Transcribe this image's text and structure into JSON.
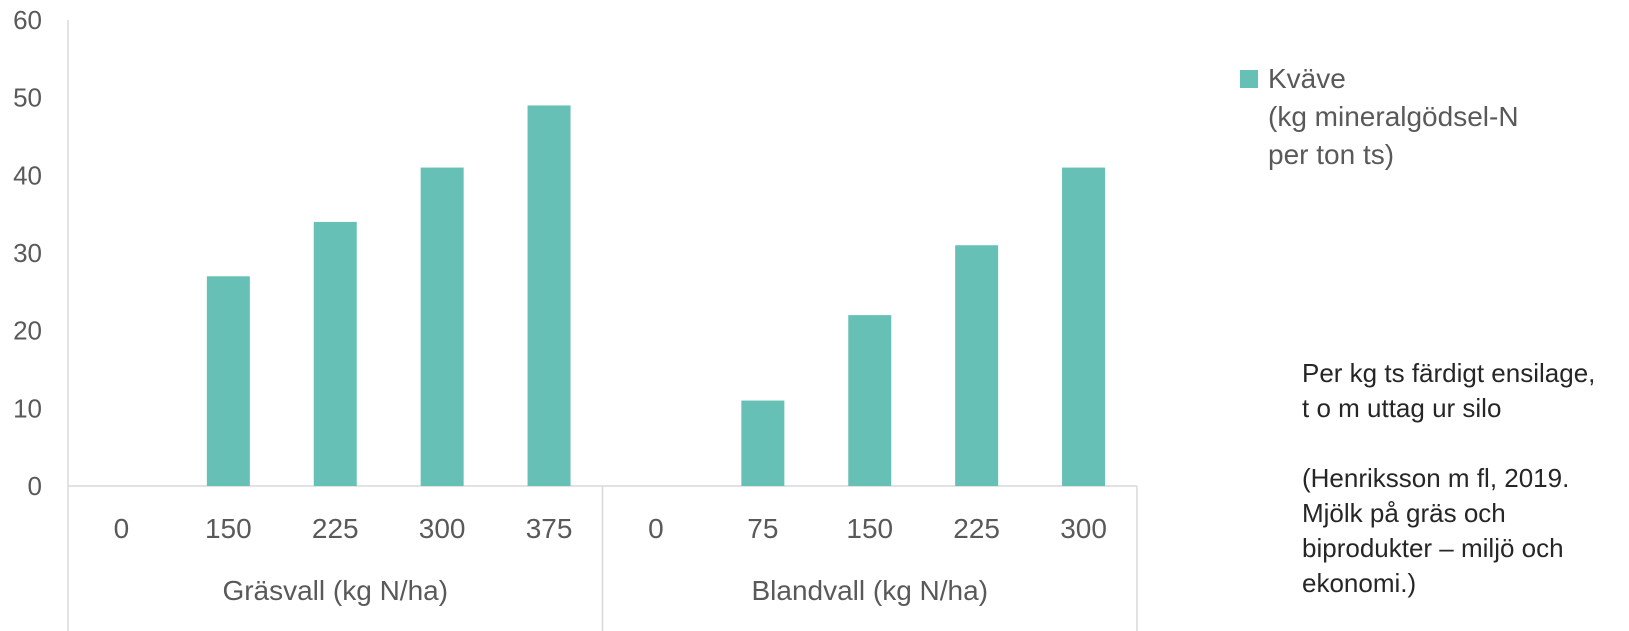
{
  "chart_data": {
    "type": "bar",
    "groups": [
      {
        "label": "Gräsvall (kg N/ha)",
        "categories": [
          "0",
          "150",
          "225",
          "300",
          "375"
        ],
        "values": [
          0,
          27,
          34,
          41,
          49
        ]
      },
      {
        "label": "Blandvall (kg N/ha)",
        "categories": [
          "0",
          "75",
          "150",
          "225",
          "300"
        ],
        "values": [
          0,
          11,
          22,
          31,
          41
        ]
      }
    ],
    "series": [
      {
        "name_lines": [
          "Kväve",
          "(kg mineralgödsel-N",
          "per ton ts)"
        ]
      }
    ],
    "ylim": [
      0,
      60
    ],
    "yticks": [
      "0",
      "10",
      "20",
      "30",
      "40",
      "50",
      "60"
    ],
    "legend_position": "right",
    "grid": false,
    "bar_color": "#66C0B6"
  },
  "annotation": {
    "lines": [
      "Per kg ts färdigt ensilage,",
      "t o m uttag ur silo",
      "",
      "(Henriksson m fl, 2019.",
      "Mjölk på gräs och",
      "biprodukter – miljö och",
      "ekonomi.)"
    ]
  }
}
